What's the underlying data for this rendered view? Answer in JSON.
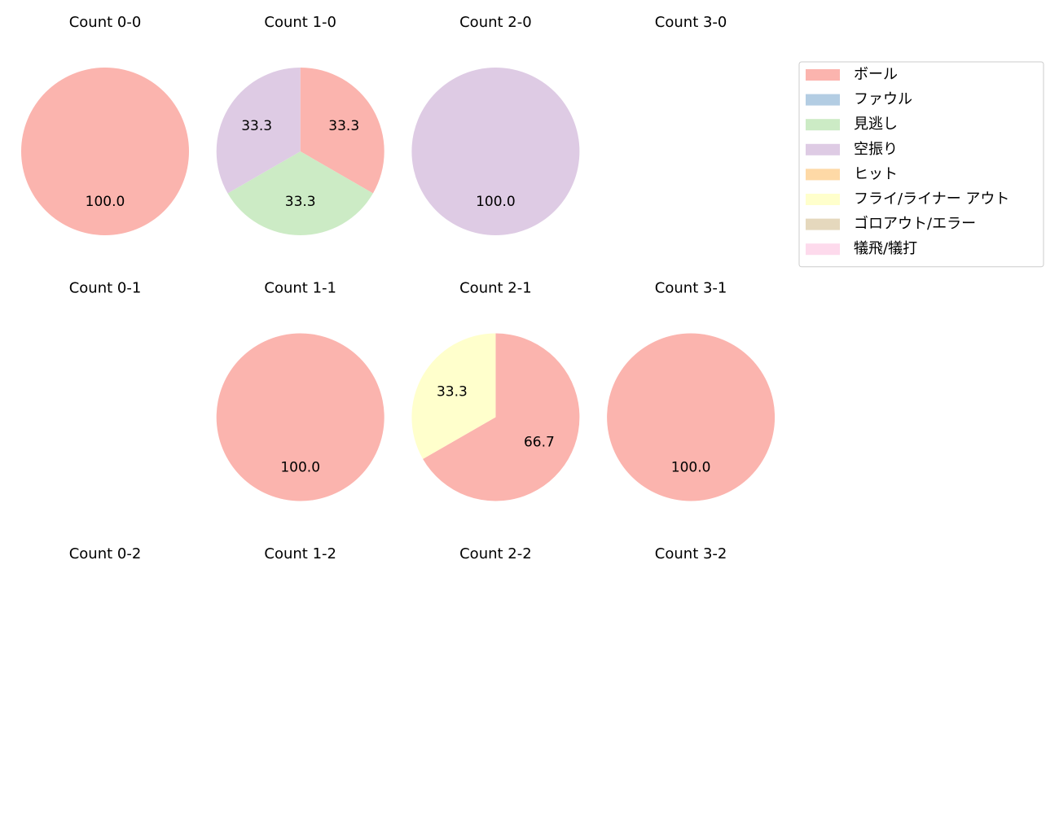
{
  "chart_data": [
    {
      "type": "pie",
      "title": "Count 0-0",
      "categories": [
        "ボール"
      ],
      "values": [
        100
      ],
      "value_labels": [
        "100.0"
      ]
    },
    {
      "type": "pie",
      "title": "Count 1-0",
      "categories": [
        "ボール",
        "見逃し",
        "空振り"
      ],
      "values": [
        33.3,
        33.3,
        33.3
      ]
    },
    {
      "type": "pie",
      "title": "Count 2-0",
      "categories": [
        "空振り"
      ],
      "values": [
        100
      ],
      "value_labels": [
        "100.0"
      ]
    },
    {
      "type": "pie",
      "title": "Count 3-0",
      "categories": [],
      "values": []
    },
    {
      "type": "pie",
      "title": "Count 0-1",
      "categories": [],
      "values": []
    },
    {
      "type": "pie",
      "title": "Count 1-1",
      "categories": [
        "ボール"
      ],
      "values": [
        100
      ],
      "value_labels": [
        "100.0"
      ]
    },
    {
      "type": "pie",
      "title": "Count 2-1",
      "categories": [
        "ボール",
        "フライ/ライナー アウト"
      ],
      "values": [
        66.7,
        33.3
      ]
    },
    {
      "type": "pie",
      "title": "Count 3-1",
      "categories": [
        "ボール"
      ],
      "values": [
        100
      ],
      "value_labels": [
        "100.0"
      ]
    },
    {
      "type": "pie",
      "title": "Count 0-2",
      "categories": [],
      "values": []
    },
    {
      "type": "pie",
      "title": "Count 1-2",
      "categories": [],
      "values": []
    },
    {
      "type": "pie",
      "title": "Count 2-2",
      "categories": [],
      "values": []
    },
    {
      "type": "pie",
      "title": "Count 3-2",
      "categories": [],
      "values": []
    }
  ],
  "legend": {
    "position": "upper right",
    "labels": [
      "ボール",
      "ファウル",
      "見逃し",
      "空振り",
      "ヒット",
      "フライ/ライナー アウト",
      "ゴロアウト/エラー",
      "犠飛/犠打"
    ],
    "colors": [
      "#fbb4ae",
      "#b3cde3",
      "#ccebc5",
      "#decbe4",
      "#fed9a6",
      "#ffffcc",
      "#e5d8bd",
      "#fddaec"
    ]
  }
}
